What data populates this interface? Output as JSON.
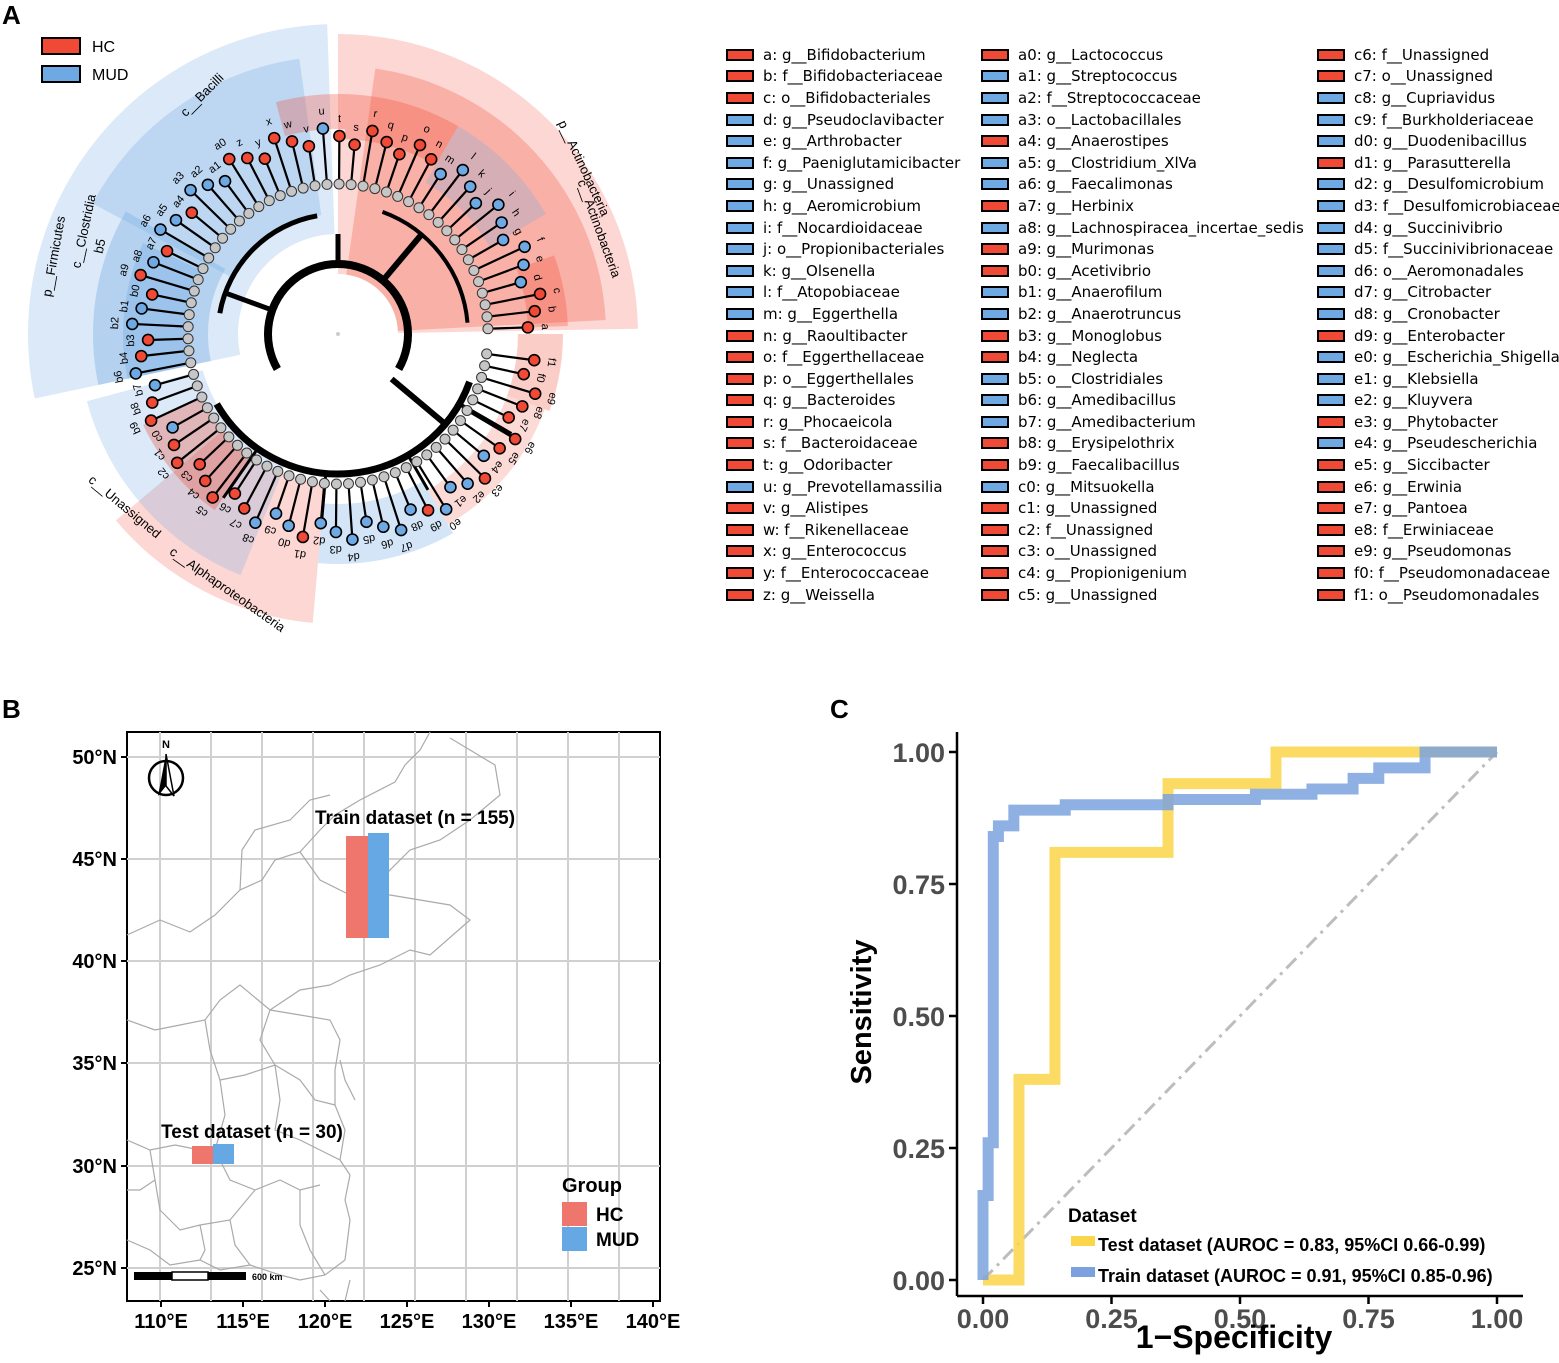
{
  "panels": {
    "a": "A",
    "b": "B",
    "c": "C"
  },
  "colors": {
    "hc": "#f04a36",
    "mud": "#6ea9e3",
    "node": "#c6c6c6",
    "test": "#fbd54a",
    "train": "#7ba2de"
  },
  "cladogram": {
    "legend": [
      {
        "label": "HC",
        "group": "HC"
      },
      {
        "label": "MUD",
        "group": "MUD"
      }
    ],
    "clades": [
      {
        "label": "p__Firmicutes"
      },
      {
        "label": "c__Bacilli"
      },
      {
        "label": "c__Clostridia"
      },
      {
        "label": "b5"
      },
      {
        "label": "p__Actinobacteria"
      },
      {
        "label": "c__Actinobacteria"
      },
      {
        "label": "c__Alphaproteobacteria"
      },
      {
        "label": "c__Unassigned"
      }
    ],
    "tips": [
      "a",
      "b",
      "c",
      "d",
      "e",
      "f",
      "g",
      "h",
      "i",
      "j",
      "k",
      "l",
      "m",
      "n",
      "o",
      "p",
      "q",
      "r",
      "s",
      "t",
      "u",
      "v",
      "w",
      "x",
      "y",
      "z",
      "a0",
      "a1",
      "a2",
      "a3",
      "a4",
      "a5",
      "a6",
      "a7",
      "a8",
      "a9",
      "b0",
      "b1",
      "b2",
      "b3",
      "b4",
      "b6",
      "b7",
      "b8",
      "b9",
      "c0",
      "c1",
      "c2",
      "c3",
      "c4",
      "c5",
      "c6",
      "c7",
      "c8",
      "c9",
      "d0",
      "d1",
      "d2",
      "d3",
      "d4",
      "d5",
      "d6",
      "d7",
      "d8",
      "d9",
      "e0",
      "e1",
      "e2",
      "e3",
      "e4",
      "e5",
      "e6",
      "e7",
      "e8",
      "e9",
      "f0",
      "f1"
    ]
  },
  "taxa_legend": [
    [
      {
        "label": "a: g__Bifidobacterium",
        "group": "HC"
      },
      {
        "label": "b: f__Bifidobacteriaceae",
        "group": "HC"
      },
      {
        "label": "c: o__Bifidobacteriales",
        "group": "HC"
      },
      {
        "label": "d: g__Pseudoclavibacter",
        "group": "MUD"
      },
      {
        "label": "e: g__Arthrobacter",
        "group": "MUD"
      },
      {
        "label": "f: g__Paeniglutamicibacter",
        "group": "MUD"
      },
      {
        "label": "g: g__Unassigned",
        "group": "MUD"
      },
      {
        "label": "h: g__Aeromicrobium",
        "group": "MUD"
      },
      {
        "label": "i: f__Nocardioidaceae",
        "group": "MUD"
      },
      {
        "label": "j: o__Propionibacteriales",
        "group": "MUD"
      },
      {
        "label": "k: g__Olsenella",
        "group": "MUD"
      },
      {
        "label": "l: f__Atopobiaceae",
        "group": "MUD"
      },
      {
        "label": "m: g__Eggerthella",
        "group": "MUD"
      },
      {
        "label": "n: g__Raoultibacter",
        "group": "HC"
      },
      {
        "label": "o: f__Eggerthellaceae",
        "group": "HC"
      },
      {
        "label": "p: o__Eggerthellales",
        "group": "HC"
      },
      {
        "label": "q: g__Bacteroides",
        "group": "HC"
      },
      {
        "label": "r: g__Phocaeicola",
        "group": "HC"
      },
      {
        "label": "s: f__Bacteroidaceae",
        "group": "HC"
      },
      {
        "label": "t: g__Odoribacter",
        "group": "HC"
      },
      {
        "label": "u: g__Prevotellamassilia",
        "group": "MUD"
      },
      {
        "label": "v: g__Alistipes",
        "group": "HC"
      },
      {
        "label": "w: f__Rikenellaceae",
        "group": "HC"
      },
      {
        "label": "x: g__Enterococcus",
        "group": "HC"
      },
      {
        "label": "y: f__Enterococcaceae",
        "group": "HC"
      },
      {
        "label": "z: g__Weissella",
        "group": "HC"
      }
    ],
    [
      {
        "label": "a0: g__Lactococcus",
        "group": "HC"
      },
      {
        "label": "a1: g__Streptococcus",
        "group": "MUD"
      },
      {
        "label": "a2: f__Streptococcaceae",
        "group": "MUD"
      },
      {
        "label": "a3: o__Lactobacillales",
        "group": "MUD"
      },
      {
        "label": "a4: g__Anaerostipes",
        "group": "HC"
      },
      {
        "label": "a5: g__Clostridium_XlVa",
        "group": "MUD"
      },
      {
        "label": "a6: g__Faecalimonas",
        "group": "MUD"
      },
      {
        "label": "a7: g__Herbinix",
        "group": "HC"
      },
      {
        "label": "a8: g__Lachnospiracea_incertae_sedis",
        "group": "MUD"
      },
      {
        "label": "a9: g__Murimonas",
        "group": "HC"
      },
      {
        "label": "b0: g__Acetivibrio",
        "group": "HC"
      },
      {
        "label": "b1: g__Anaerofilum",
        "group": "MUD"
      },
      {
        "label": "b2: g__Anaerotruncus",
        "group": "MUD"
      },
      {
        "label": "b3: g__Monoglobus",
        "group": "HC"
      },
      {
        "label": "b4: g__Neglecta",
        "group": "HC"
      },
      {
        "label": "b5: o__Clostridiales",
        "group": "MUD"
      },
      {
        "label": "b6: g__Amedibacillus",
        "group": "MUD"
      },
      {
        "label": "b7: g__Amedibacterium",
        "group": "MUD"
      },
      {
        "label": "b8: g__Erysipelothrix",
        "group": "HC"
      },
      {
        "label": "b9: g__Faecalibacillus",
        "group": "HC"
      },
      {
        "label": "c0: g__Mitsuokella",
        "group": "MUD"
      },
      {
        "label": "c1: g__Unassigned",
        "group": "HC"
      },
      {
        "label": "c2: f__Unassigned",
        "group": "HC"
      },
      {
        "label": "c3: o__Unassigned",
        "group": "HC"
      },
      {
        "label": "c4: g__Propionigenium",
        "group": "HC"
      },
      {
        "label": "c5: g__Unassigned",
        "group": "HC"
      }
    ],
    [
      {
        "label": "c6: f__Unassigned",
        "group": "HC"
      },
      {
        "label": "c7: o__Unassigned",
        "group": "HC"
      },
      {
        "label": "c8: g__Cupriavidus",
        "group": "MUD"
      },
      {
        "label": "c9: f__Burkholderiaceae",
        "group": "MUD"
      },
      {
        "label": "d0: g__Duodenibacillus",
        "group": "MUD"
      },
      {
        "label": "d1: g__Parasutterella",
        "group": "HC"
      },
      {
        "label": "d2: g__Desulfomicrobium",
        "group": "MUD"
      },
      {
        "label": "d3: f__Desulfomicrobiaceae",
        "group": "MUD"
      },
      {
        "label": "d4: g__Succinivibrio",
        "group": "MUD"
      },
      {
        "label": "d5: f__Succinivibrionaceae",
        "group": "MUD"
      },
      {
        "label": "d6: o__Aeromonadales",
        "group": "MUD"
      },
      {
        "label": "d7: g__Citrobacter",
        "group": "MUD"
      },
      {
        "label": "d8: g__Cronobacter",
        "group": "MUD"
      },
      {
        "label": "d9: g__Enterobacter",
        "group": "HC"
      },
      {
        "label": "e0: g__Escherichia_Shigella",
        "group": "MUD"
      },
      {
        "label": "e1: g__Klebsiella",
        "group": "MUD"
      },
      {
        "label": "e2: g__Kluyvera",
        "group": "MUD"
      },
      {
        "label": "e3: g__Phytobacter",
        "group": "HC"
      },
      {
        "label": "e4: g__Pseudescherichia",
        "group": "MUD"
      },
      {
        "label": "e5: g__Siccibacter",
        "group": "HC"
      },
      {
        "label": "e6: g__Erwinia",
        "group": "HC"
      },
      {
        "label": "e7: g__Pantoea",
        "group": "HC"
      },
      {
        "label": "e8: f__Erwiniaceae",
        "group": "HC"
      },
      {
        "label": "e9: g__Pseudomonas",
        "group": "HC"
      },
      {
        "label": "f0: f__Pseudomonadaceae",
        "group": "HC"
      },
      {
        "label": "f1: o__Pseudomonadales",
        "group": "HC"
      }
    ]
  ],
  "map": {
    "north_label": "N",
    "train_label": "Train dataset (n = 155)",
    "test_label": "Test dataset (n = 30)",
    "scale_label": "600 km",
    "lat_ticks": [
      "25°N",
      "30°N",
      "35°N",
      "40°N",
      "45°N",
      "50°N"
    ],
    "lon_ticks": [
      "110°E",
      "115°E",
      "120°E",
      "125°E",
      "130°E",
      "135°E",
      "140°E"
    ],
    "legend_title": "Group",
    "legend": [
      {
        "label": "HC",
        "group": "HC"
      },
      {
        "label": "MUD",
        "group": "MUD"
      }
    ]
  },
  "chart_data": {
    "type": "line",
    "title": "",
    "xlabel": "1−Specificity",
    "ylabel": "Sensitivity",
    "xlim": [
      0,
      1
    ],
    "ylim": [
      0,
      1
    ],
    "xticks": [
      "0.00",
      "0.25",
      "0.50",
      "0.75",
      "1.00"
    ],
    "yticks": [
      "0.00",
      "0.25",
      "0.50",
      "0.75",
      "1.00"
    ],
    "legend_title": "Dataset",
    "series": [
      {
        "name": "Test dataset (AUROC = 0.83, 95%CI 0.66-0.99)",
        "color_key": "test",
        "x": [
          0,
          0.07,
          0.07,
          0.14,
          0.14,
          0.36,
          0.36,
          0.57,
          0.57,
          0.86,
          0.86,
          1
        ],
        "y": [
          0,
          0,
          0.38,
          0.38,
          0.81,
          0.81,
          0.94,
          0.94,
          1,
          1,
          1,
          1
        ]
      },
      {
        "name": "Train dataset (AUROC = 0.91, 95%CI 0.85-0.96)",
        "color_key": "train",
        "x": [
          0,
          0,
          0.01,
          0.01,
          0.02,
          0.02,
          0.03,
          0.03,
          0.06,
          0.06,
          0.16,
          0.16,
          0.36,
          0.36,
          0.53,
          0.53,
          0.64,
          0.64,
          0.72,
          0.72,
          0.77,
          0.77,
          0.86,
          0.86,
          1
        ],
        "y": [
          0,
          0.16,
          0.16,
          0.26,
          0.26,
          0.84,
          0.84,
          0.86,
          0.86,
          0.89,
          0.89,
          0.9,
          0.9,
          0.91,
          0.91,
          0.92,
          0.92,
          0.93,
          0.93,
          0.95,
          0.95,
          0.97,
          0.97,
          1,
          1
        ]
      }
    ],
    "diagonal": true
  }
}
